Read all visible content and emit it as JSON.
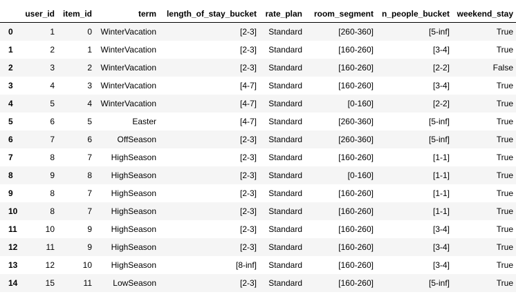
{
  "table": {
    "columns": [
      "",
      "user_id",
      "item_id",
      "term",
      "length_of_stay_bucket",
      "rate_plan",
      "room_segment",
      "n_people_bucket",
      "weekend_stay"
    ],
    "rows": [
      {
        "index": "0",
        "user_id": "1",
        "item_id": "0",
        "term": "WinterVacation",
        "length_of_stay_bucket": "[2-3]",
        "rate_plan": "Standard",
        "room_segment": "[260-360]",
        "n_people_bucket": "[5-inf]",
        "weekend_stay": "True"
      },
      {
        "index": "1",
        "user_id": "2",
        "item_id": "1",
        "term": "WinterVacation",
        "length_of_stay_bucket": "[2-3]",
        "rate_plan": "Standard",
        "room_segment": "[160-260]",
        "n_people_bucket": "[3-4]",
        "weekend_stay": "True"
      },
      {
        "index": "2",
        "user_id": "3",
        "item_id": "2",
        "term": "WinterVacation",
        "length_of_stay_bucket": "[2-3]",
        "rate_plan": "Standard",
        "room_segment": "[160-260]",
        "n_people_bucket": "[2-2]",
        "weekend_stay": "False"
      },
      {
        "index": "3",
        "user_id": "4",
        "item_id": "3",
        "term": "WinterVacation",
        "length_of_stay_bucket": "[4-7]",
        "rate_plan": "Standard",
        "room_segment": "[160-260]",
        "n_people_bucket": "[3-4]",
        "weekend_stay": "True"
      },
      {
        "index": "4",
        "user_id": "5",
        "item_id": "4",
        "term": "WinterVacation",
        "length_of_stay_bucket": "[4-7]",
        "rate_plan": "Standard",
        "room_segment": "[0-160]",
        "n_people_bucket": "[2-2]",
        "weekend_stay": "True"
      },
      {
        "index": "5",
        "user_id": "6",
        "item_id": "5",
        "term": "Easter",
        "length_of_stay_bucket": "[4-7]",
        "rate_plan": "Standard",
        "room_segment": "[260-360]",
        "n_people_bucket": "[5-inf]",
        "weekend_stay": "True"
      },
      {
        "index": "6",
        "user_id": "7",
        "item_id": "6",
        "term": "OffSeason",
        "length_of_stay_bucket": "[2-3]",
        "rate_plan": "Standard",
        "room_segment": "[260-360]",
        "n_people_bucket": "[5-inf]",
        "weekend_stay": "True"
      },
      {
        "index": "7",
        "user_id": "8",
        "item_id": "7",
        "term": "HighSeason",
        "length_of_stay_bucket": "[2-3]",
        "rate_plan": "Standard",
        "room_segment": "[160-260]",
        "n_people_bucket": "[1-1]",
        "weekend_stay": "True"
      },
      {
        "index": "8",
        "user_id": "9",
        "item_id": "8",
        "term": "HighSeason",
        "length_of_stay_bucket": "[2-3]",
        "rate_plan": "Standard",
        "room_segment": "[0-160]",
        "n_people_bucket": "[1-1]",
        "weekend_stay": "True"
      },
      {
        "index": "9",
        "user_id": "8",
        "item_id": "7",
        "term": "HighSeason",
        "length_of_stay_bucket": "[2-3]",
        "rate_plan": "Standard",
        "room_segment": "[160-260]",
        "n_people_bucket": "[1-1]",
        "weekend_stay": "True"
      },
      {
        "index": "10",
        "user_id": "8",
        "item_id": "7",
        "term": "HighSeason",
        "length_of_stay_bucket": "[2-3]",
        "rate_plan": "Standard",
        "room_segment": "[160-260]",
        "n_people_bucket": "[1-1]",
        "weekend_stay": "True"
      },
      {
        "index": "11",
        "user_id": "10",
        "item_id": "9",
        "term": "HighSeason",
        "length_of_stay_bucket": "[2-3]",
        "rate_plan": "Standard",
        "room_segment": "[160-260]",
        "n_people_bucket": "[3-4]",
        "weekend_stay": "True"
      },
      {
        "index": "12",
        "user_id": "11",
        "item_id": "9",
        "term": "HighSeason",
        "length_of_stay_bucket": "[2-3]",
        "rate_plan": "Standard",
        "room_segment": "[160-260]",
        "n_people_bucket": "[3-4]",
        "weekend_stay": "True"
      },
      {
        "index": "13",
        "user_id": "12",
        "item_id": "10",
        "term": "HighSeason",
        "length_of_stay_bucket": "[8-inf]",
        "rate_plan": "Standard",
        "room_segment": "[160-260]",
        "n_people_bucket": "[3-4]",
        "weekend_stay": "True"
      },
      {
        "index": "14",
        "user_id": "15",
        "item_id": "11",
        "term": "LowSeason",
        "length_of_stay_bucket": "[2-3]",
        "rate_plan": "Standard",
        "room_segment": "[160-260]",
        "n_people_bucket": "[5-inf]",
        "weekend_stay": "True"
      }
    ]
  },
  "colors": {
    "stripe": "#f5f5f5",
    "background": "#ffffff",
    "header_rule": "#000000"
  }
}
